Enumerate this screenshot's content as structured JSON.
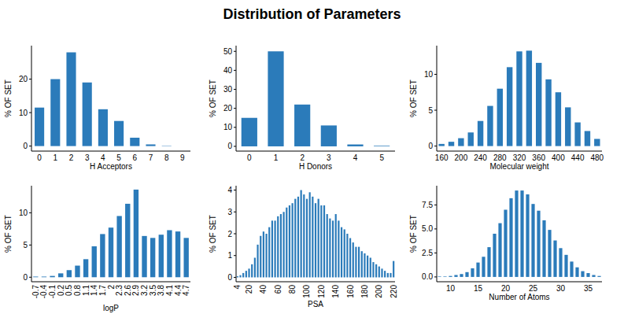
{
  "title": "Distribution of Parameters",
  "chart_data": [
    {
      "type": "bar",
      "x_label": "H Acceptors",
      "y_label": "% OF SET",
      "color": "#2b7bba",
      "categories": [
        0,
        1,
        2,
        3,
        4,
        5,
        6,
        7,
        8,
        9
      ],
      "values": [
        11.5,
        20,
        28,
        19,
        11,
        7.5,
        2.5,
        0.5,
        0.1,
        0
      ],
      "ylim": [
        -1.5,
        30
      ],
      "yticks": [
        0,
        10,
        20
      ]
    },
    {
      "type": "bar",
      "x_label": "H Donors",
      "y_label": "% OF SET",
      "color": "#2b7bba",
      "categories": [
        0,
        1,
        2,
        3,
        4,
        5
      ],
      "values": [
        15,
        50,
        22,
        11,
        1,
        0.3
      ],
      "ylim": [
        -2.5,
        53
      ],
      "yticks": [
        0,
        10,
        20,
        30,
        40,
        50
      ]
    },
    {
      "type": "bar",
      "x_label": "Molecular weight",
      "y_label": "% OF SET",
      "color": "#2b7bba",
      "categories": [
        160,
        null,
        200,
        null,
        240,
        null,
        280,
        null,
        320,
        null,
        360,
        null,
        400,
        null,
        440,
        null,
        480
      ],
      "values": [
        0.3,
        0.6,
        1.1,
        1.9,
        3.5,
        5.6,
        8,
        11,
        13.2,
        13.3,
        11.6,
        9.3,
        7.5,
        5.4,
        3.3,
        2.1,
        1
      ],
      "ylim": [
        -0.7,
        14
      ],
      "yticks": [
        0,
        5,
        10
      ]
    },
    {
      "type": "bar",
      "x_label": "logP",
      "y_label": "% OF SET",
      "color": "#2b7bba",
      "categories": [
        -0.7,
        -0.4,
        -0.1,
        0.2,
        0.5,
        0.8,
        1.1,
        1.4,
        1.7,
        2,
        2.3,
        2.6,
        2.9,
        3.2,
        3.5,
        3.8,
        4.1,
        4.4,
        4.7
      ],
      "values": [
        0.1,
        0.1,
        0.2,
        0.6,
        1.1,
        1.8,
        2.8,
        4.8,
        6.7,
        7.7,
        9.5,
        11.4,
        13.6,
        6.4,
        6.1,
        6.6,
        7.3,
        7.1,
        6.1
      ],
      "ylim": [
        -0.7,
        14.2
      ],
      "yticks": [
        0,
        5,
        10
      ]
    },
    {
      "type": "bar",
      "x_label": "PSA",
      "y_label": "% OF SET",
      "color": "#2b7bba",
      "categories": [
        4,
        null,
        null,
        null,
        20,
        null,
        null,
        null,
        null,
        40,
        null,
        null,
        null,
        null,
        60,
        null,
        null,
        null,
        null,
        80,
        null,
        null,
        null,
        null,
        100,
        null,
        null,
        null,
        null,
        120,
        null,
        null,
        null,
        null,
        140,
        null,
        null,
        null,
        null,
        160,
        null,
        null,
        null,
        null,
        180,
        null,
        null,
        null,
        null,
        200,
        null,
        null,
        null,
        null,
        220
      ],
      "values": [
        0.05,
        0.1,
        0.2,
        0.3,
        0.4,
        0.6,
        0.9,
        1.5,
        1.9,
        2.1,
        2.0,
        2.3,
        2.6,
        2.6,
        2.8,
        2.9,
        3.0,
        3.2,
        3.3,
        3.4,
        3.6,
        3.7,
        4.0,
        3.8,
        3.6,
        3.9,
        3.7,
        3.4,
        3.6,
        3.3,
        3.3,
        2.9,
        2.7,
        2.6,
        2.9,
        2.6,
        2.3,
        2.2,
        2.0,
        1.8,
        1.6,
        1.4,
        1.4,
        1.2,
        1.1,
        1.0,
        0.9,
        0.7,
        0.6,
        0.5,
        0.4,
        0.3,
        0.2,
        0.2,
        0.75
      ],
      "ylim": [
        -0.2,
        4.2
      ],
      "yticks": [
        0,
        1,
        2,
        3,
        4
      ]
    },
    {
      "type": "bar",
      "x_label": "Number of Atoms",
      "y_label": "% OF SET",
      "color": "#2b7bba",
      "categories": [
        null,
        null,
        10,
        null,
        null,
        null,
        null,
        15,
        null,
        null,
        null,
        null,
        20,
        null,
        null,
        null,
        null,
        25,
        null,
        null,
        null,
        null,
        30,
        null,
        null,
        null,
        null,
        35,
        null,
        null
      ],
      "values": [
        0.05,
        0.05,
        0.1,
        0.2,
        0.3,
        0.5,
        0.9,
        1.5,
        2.1,
        3.1,
        4.5,
        5.6,
        7.0,
        8.2,
        9.0,
        9.0,
        8.6,
        7.6,
        6.9,
        5.9,
        4.9,
        3.8,
        3.0,
        2.3,
        1.6,
        1.0,
        0.6,
        0.4,
        0.2,
        0.1
      ],
      "ylim": [
        -0.5,
        9.5
      ],
      "yticks": [
        {
          "value": 0,
          "label": "0.0"
        },
        {
          "value": 2.5,
          "label": "2.5"
        },
        {
          "value": 5,
          "label": "5.0"
        },
        {
          "value": 7.5,
          "label": "7.5"
        }
      ]
    }
  ]
}
